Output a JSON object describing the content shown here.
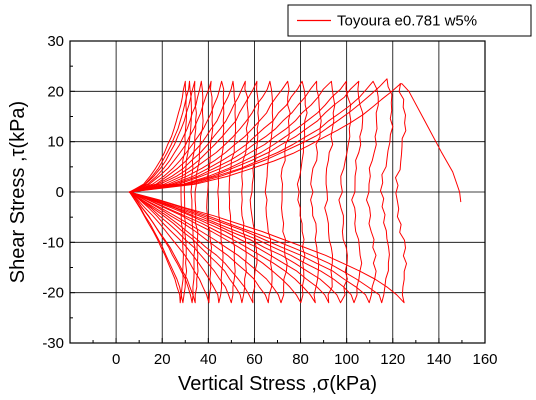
{
  "chart_data": {
    "type": "line",
    "title": "",
    "xlabel": "Vertical Stress ,σ(kPa)",
    "ylabel": "Shear Stress ,τ(kPa)",
    "xlim": [
      -20,
      160
    ],
    "ylim": [
      -30,
      30
    ],
    "xticks": [
      0,
      20,
      40,
      60,
      80,
      100,
      120,
      140,
      160
    ],
    "yticks": [
      -30,
      -20,
      -10,
      0,
      10,
      20,
      30
    ],
    "grid": true,
    "legend": {
      "position": "top-right",
      "entries": [
        "Toyoura e0.781 w5%"
      ]
    },
    "colors": {
      "series": "#ff0000",
      "axes": "#000000",
      "grid": "#000000"
    },
    "series": [
      {
        "name": "Toyoura e0.781 w5%",
        "loops": [
          {
            "top": [
              30,
              22
            ],
            "bottom": [
              28,
              -22
            ]
          },
          {
            "top": [
              32,
              22
            ],
            "bottom": [
              29,
              -22
            ]
          },
          {
            "top": [
              34,
              22
            ],
            "bottom": [
              33,
              -22
            ]
          },
          {
            "top": [
              37,
              22
            ],
            "bottom": [
              34,
              -22
            ]
          },
          {
            "top": [
              41,
              22
            ],
            "bottom": [
              40,
              -22
            ]
          },
          {
            "top": [
              46,
              22
            ],
            "bottom": [
              45,
              -22
            ]
          },
          {
            "top": [
              51,
              22
            ],
            "bottom": [
              50,
              -22
            ]
          },
          {
            "top": [
              56,
              22
            ],
            "bottom": [
              55,
              -22
            ]
          },
          {
            "top": [
              61,
              22
            ],
            "bottom": [
              59,
              -22
            ]
          },
          {
            "top": [
              67,
              22
            ],
            "bottom": [
              66,
              -22
            ]
          },
          {
            "top": [
              74,
              22
            ],
            "bottom": [
              72,
              -22
            ]
          },
          {
            "top": [
              81,
              22
            ],
            "bottom": [
              80,
              -22
            ]
          },
          {
            "top": [
              87,
              22
            ],
            "bottom": [
              86,
              -22
            ]
          },
          {
            "top": [
              93,
              22
            ],
            "bottom": [
              92,
              -22
            ]
          },
          {
            "top": [
              100,
              22
            ],
            "bottom": [
              98,
              -22
            ]
          },
          {
            "top": [
              105,
              22
            ],
            "bottom": [
              104,
              -22
            ]
          },
          {
            "top": [
              112,
              22
            ],
            "bottom": [
              110,
              -22
            ]
          },
          {
            "top": [
              118,
              22.5
            ],
            "bottom": [
              116,
              -22
            ]
          },
          {
            "top": [
              123,
              21.5
            ],
            "bottom": [
              124,
              -22
            ]
          }
        ],
        "origin": [
          6,
          0
        ],
        "tail": [
          [
            124,
            21.5
          ],
          [
            127,
            20
          ],
          [
            134,
            14
          ],
          [
            141,
            8
          ],
          [
            146,
            4
          ],
          [
            149,
            0
          ],
          [
            149.5,
            -2
          ]
        ]
      }
    ]
  }
}
